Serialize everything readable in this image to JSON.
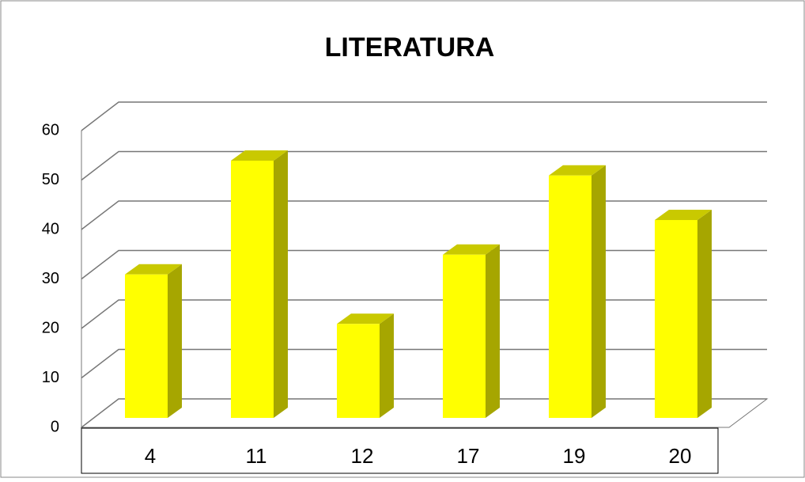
{
  "chart_data": {
    "type": "bar",
    "title": "LITERATURA",
    "categories": [
      "4",
      "11",
      "12",
      "17",
      "19",
      "20"
    ],
    "values": [
      29,
      52,
      19,
      33,
      49,
      40
    ],
    "color": "#ffff00",
    "ylim": [
      0,
      60
    ],
    "yticks": [
      0,
      10,
      20,
      30,
      40,
      50,
      60
    ],
    "grid": true
  }
}
